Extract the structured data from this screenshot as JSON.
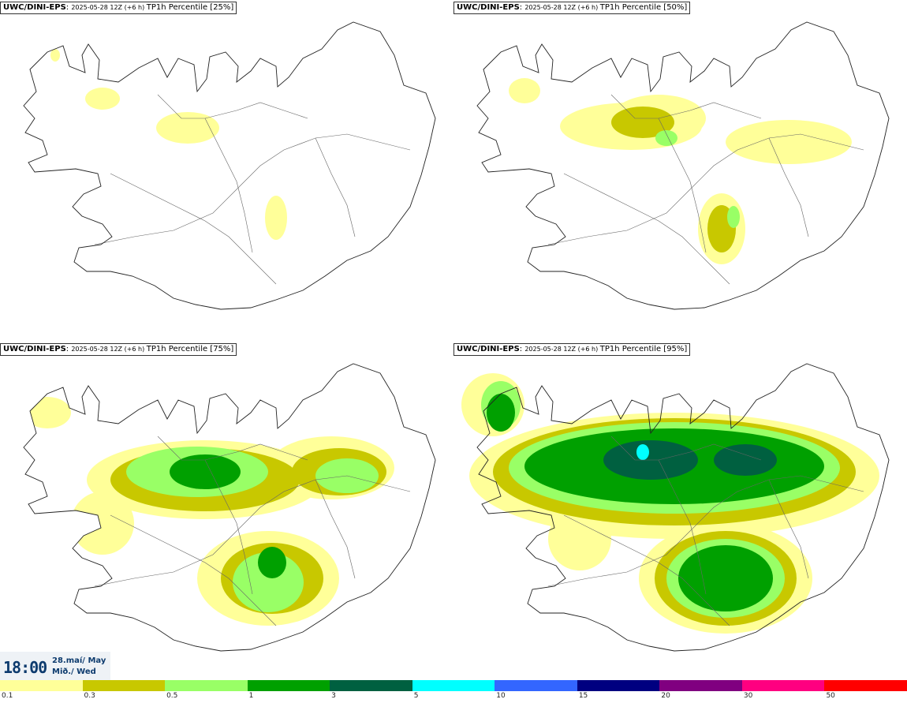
{
  "panels": [
    {
      "source": "UWC/DINI-EPS",
      "run": "2025-05-28 12Z (+6 h)",
      "variable": "TP1h Percentile [25%]",
      "level": 0
    },
    {
      "source": "UWC/DINI-EPS",
      "run": "2025-05-28 12Z (+6 h)",
      "variable": "TP1h Percentile [50%]",
      "level": 1
    },
    {
      "source": "UWC/DINI-EPS",
      "run": "2025-05-28 12Z (+6 h)",
      "variable": "TP1h Percentile [75%]",
      "level": 2
    },
    {
      "source": "UWC/DINI-EPS",
      "run": "2025-05-28 12Z (+6 h)",
      "variable": "TP1h Percentile [95%]",
      "level": 3
    }
  ],
  "valid_time": {
    "time": "18:00",
    "date_line1": "28.maí/ May",
    "date_line2": "Mið./ Wed"
  },
  "legend": {
    "labels": [
      "0.1",
      "0.3",
      "0.5",
      "1",
      "3",
      "5",
      "10",
      "15",
      "20",
      "30",
      "50"
    ],
    "colors": [
      "#ffff99",
      "#c8c800",
      "#99ff66",
      "#00a000",
      "#006040",
      "#00ffff",
      "#3366ff",
      "#000080",
      "#800080",
      "#ff0080",
      "#ff0000"
    ]
  }
}
